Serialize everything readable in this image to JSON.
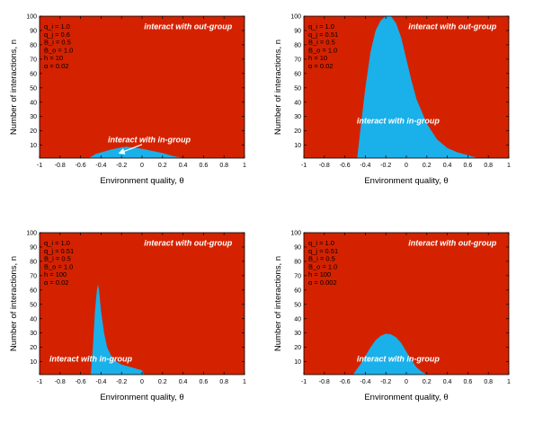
{
  "colors": {
    "out_group": "#d42200",
    "in_group": "#1ab0ea",
    "axis": "#000000",
    "annotation": "#ffffff"
  },
  "chart_data": [
    {
      "type": "area",
      "panel": "top-left",
      "xlabel": "Environment quality, θ",
      "ylabel": "Number of interactions, n",
      "xlim": [
        -1,
        1
      ],
      "ylim": [
        1,
        100
      ],
      "xticks": [
        -1,
        -0.8,
        -0.6,
        -0.4,
        -0.2,
        0,
        0.2,
        0.4,
        0.6,
        0.8,
        1
      ],
      "xtick_labels": [
        "-1",
        "-0.8",
        "-0.6",
        "-0.4",
        "-0.2",
        "0",
        "0.2",
        "0.4",
        "0.6",
        "0.8",
        "1"
      ],
      "yticks": [
        10,
        20,
        30,
        40,
        50,
        60,
        70,
        80,
        90,
        100
      ],
      "ytick_labels": [
        "10",
        "20",
        "30",
        "40",
        "50",
        "60",
        "70",
        "80",
        "90",
        "100"
      ],
      "grid": false,
      "params": [
        "q_i = 1.0",
        "q_j = 0.6",
        "B_i = 0.5",
        "B_o = 1.0",
        "h = 10",
        "α = 0.02"
      ],
      "labels": {
        "out_group": "interact with out-group",
        "in_group": "interact with in-group"
      },
      "in_group_region": {
        "x": [
          -0.52,
          -0.45,
          -0.4,
          -0.3,
          -0.2,
          -0.15,
          -0.1,
          0.0,
          0.1,
          0.2,
          0.3,
          0.4
        ],
        "y": [
          1,
          4,
          5,
          7,
          8.5,
          9,
          8.5,
          7.5,
          6,
          4.5,
          2.5,
          1
        ]
      },
      "arrow": {
        "from": [
          0.0,
          10.5
        ],
        "to": [
          -0.22,
          4.5
        ]
      }
    },
    {
      "type": "area",
      "panel": "top-right",
      "xlabel": "Environment quality, θ",
      "ylabel": "Number of interactions, n",
      "xlim": [
        -1,
        1
      ],
      "ylim": [
        1,
        100
      ],
      "xticks": [
        -1,
        -0.8,
        -0.6,
        -0.4,
        -0.2,
        0,
        0.2,
        0.4,
        0.6,
        0.8,
        1
      ],
      "xtick_labels": [
        "-1",
        "-0.8",
        "-0.6",
        "-0.4",
        "-0.2",
        "0",
        "0.2",
        "0.4",
        "0.6",
        "0.8",
        "1"
      ],
      "yticks": [
        10,
        20,
        30,
        40,
        50,
        60,
        70,
        80,
        90,
        100
      ],
      "ytick_labels": [
        "10",
        "20",
        "30",
        "40",
        "50",
        "60",
        "70",
        "80",
        "90",
        "100"
      ],
      "grid": false,
      "params": [
        "q_i = 1.0",
        "q_j = 0.51",
        "B_i = 0.5",
        "B_o = 1.0",
        "h = 10",
        "α = 0.02"
      ],
      "labels": {
        "out_group": "interact with out-group",
        "in_group": "interact with in-group"
      },
      "in_group_region": {
        "x": [
          -0.48,
          -0.45,
          -0.4,
          -0.35,
          -0.3,
          -0.25,
          -0.2,
          -0.15,
          -0.1,
          -0.05,
          0.0,
          0.05,
          0.1,
          0.2,
          0.3,
          0.4,
          0.5,
          0.6,
          0.7
        ],
        "y": [
          1,
          20,
          50,
          75,
          90,
          97,
          100,
          100,
          95,
          85,
          70,
          55,
          42,
          25,
          14,
          8,
          5,
          3,
          1
        ]
      }
    },
    {
      "type": "area",
      "panel": "bottom-left",
      "xlabel": "Environment quality, θ",
      "ylabel": "Number of interactions, n",
      "xlim": [
        -1,
        1
      ],
      "ylim": [
        1,
        100
      ],
      "xticks": [
        -1,
        -0.8,
        -0.6,
        -0.4,
        -0.2,
        0,
        0.2,
        0.4,
        0.6,
        0.8,
        1
      ],
      "xtick_labels": [
        "-1",
        "-0.8",
        "-0.6",
        "-0.4",
        "-0.2",
        "0",
        "0.2",
        "0.4",
        "0.6",
        "0.8",
        "1"
      ],
      "yticks": [
        10,
        20,
        30,
        40,
        50,
        60,
        70,
        80,
        90,
        100
      ],
      "ytick_labels": [
        "10",
        "20",
        "30",
        "40",
        "50",
        "60",
        "70",
        "80",
        "90",
        "100"
      ],
      "grid": false,
      "params": [
        "q_i = 1.0",
        "q_j = 0.51",
        "B_i = 0.5",
        "B_o = 1.0",
        "h = 100",
        "α = 0.02"
      ],
      "labels": {
        "out_group": "interact with out-group",
        "in_group": "interact with in-group"
      },
      "in_group_region": {
        "x": [
          -0.5,
          -0.48,
          -0.46,
          -0.44,
          -0.43,
          -0.42,
          -0.4,
          -0.37,
          -0.34,
          -0.3,
          -0.25,
          -0.2,
          -0.15,
          -0.1,
          -0.05,
          0.0,
          0.02
        ],
        "y": [
          1,
          20,
          45,
          60,
          64,
          60,
          45,
          30,
          20,
          14,
          10,
          8,
          7,
          6,
          5,
          4,
          1
        ]
      }
    },
    {
      "type": "area",
      "panel": "bottom-right",
      "xlabel": "Environment quality, θ",
      "ylabel": "Number of interactions, n",
      "xlim": [
        -1,
        1
      ],
      "ylim": [
        1,
        100
      ],
      "xticks": [
        -1,
        -0.8,
        -0.6,
        -0.4,
        -0.2,
        0,
        0.2,
        0.4,
        0.6,
        0.8,
        1
      ],
      "xtick_labels": [
        "-1",
        "-0.8",
        "-0.6",
        "-0.4",
        "-0.2",
        "0",
        "0.2",
        "0.4",
        "0.6",
        "0.8",
        "1"
      ],
      "yticks": [
        10,
        20,
        30,
        40,
        50,
        60,
        70,
        80,
        90,
        100
      ],
      "ytick_labels": [
        "10",
        "20",
        "30",
        "40",
        "50",
        "60",
        "70",
        "80",
        "90",
        "100"
      ],
      "grid": false,
      "params": [
        "q_i = 1.0",
        "q_j = 0.51",
        "B_i = 0.5",
        "B_o = 1.0",
        "h = 100",
        "α = 0.002"
      ],
      "labels": {
        "out_group": "interact with out-group",
        "in_group": "interact with in-group"
      },
      "in_group_region": {
        "x": [
          -0.52,
          -0.45,
          -0.4,
          -0.35,
          -0.3,
          -0.25,
          -0.2,
          -0.15,
          -0.1,
          -0.05,
          0.0,
          0.05,
          0.1,
          0.15,
          0.2
        ],
        "y": [
          1,
          8,
          14,
          20,
          25,
          28,
          29.5,
          29,
          27,
          23,
          17,
          11,
          6,
          3,
          1
        ]
      }
    }
  ]
}
